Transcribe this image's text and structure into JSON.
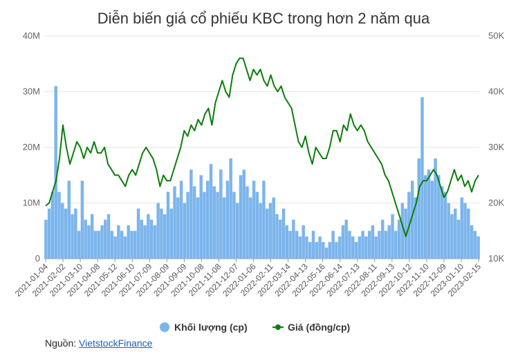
{
  "chart_data": {
    "type": "bar+line",
    "title": "Diễn biến giá cổ phiếu KBC trong hơn 2 năm qua",
    "x_labels": [
      "2021-01-04",
      "2021-02-02",
      "2021-03-10",
      "2021-04-08",
      "2021-05-12",
      "2021-06-10",
      "2021-07-09",
      "2021-08-09",
      "2021-09-09",
      "2021-10-08",
      "2021-11-08",
      "2021-12-07",
      "2022-01-06",
      "2022-02-11",
      "2022-03-14",
      "2022-04-13",
      "2022-05-16",
      "2022-06-14",
      "2022-07-13",
      "2022-08-11",
      "2022-09-13",
      "2022-10-12",
      "2022-11-10",
      "2022-12-09",
      "2023-01-10",
      "2023-02-15"
    ],
    "left_axis": {
      "ticks": [
        "0",
        "10M",
        "20M",
        "30M",
        "40M"
      ],
      "min": 0,
      "max": 40000000
    },
    "right_axis": {
      "ticks": [
        "10K",
        "20K",
        "30K",
        "40K",
        "50K"
      ],
      "min": 10000,
      "max": 50000
    },
    "series": [
      {
        "name": "Khối lượng (cp)",
        "type": "bar",
        "axis": "left",
        "color": "#7cb5ec",
        "values_millions": [
          7,
          9,
          12,
          31,
          12,
          10,
          9,
          14,
          8,
          9,
          5,
          14,
          7,
          6,
          8,
          5,
          5,
          6,
          7,
          8,
          5,
          4,
          6,
          5,
          4,
          6,
          5,
          5,
          9,
          7,
          6,
          8,
          7,
          6,
          10,
          9,
          8,
          12,
          9,
          13,
          11,
          14,
          10,
          12,
          16,
          13,
          11,
          15,
          12,
          14,
          17,
          13,
          12,
          16,
          11,
          14,
          18,
          12,
          10,
          15,
          16,
          13,
          11,
          14,
          12,
          10,
          14,
          9,
          10,
          11,
          8,
          7,
          9,
          6,
          5,
          7,
          5,
          4,
          6,
          4,
          3,
          5,
          3,
          4,
          3,
          2,
          3,
          5,
          3,
          4,
          6,
          7,
          5,
          4,
          3,
          4,
          5,
          4,
          5,
          6,
          4,
          5,
          7,
          5,
          6,
          8,
          5,
          7,
          10,
          9,
          12,
          14,
          11,
          18,
          29,
          15,
          16,
          14,
          18,
          15,
          13,
          12,
          10,
          8,
          9,
          7,
          11,
          10,
          9,
          6,
          5,
          4
        ]
      },
      {
        "name": "Giá (đồng/cp)",
        "type": "line",
        "axis": "right",
        "color": "#0a7d0a",
        "values_k": [
          19.5,
          20,
          22,
          24,
          28,
          34,
          30,
          27,
          29,
          31,
          30,
          28,
          30,
          29,
          31,
          29,
          29,
          30,
          27,
          26,
          25,
          25,
          24,
          23,
          25,
          26,
          25,
          27,
          29,
          30,
          29,
          28,
          26,
          23,
          25,
          24,
          24,
          26,
          28,
          30,
          33,
          32,
          34,
          33,
          35,
          34,
          36,
          37,
          34,
          38,
          40,
          42,
          40,
          39,
          43,
          45,
          46,
          46,
          44,
          42,
          44,
          43,
          44,
          42,
          41,
          43,
          41,
          40,
          41,
          39,
          38,
          37,
          34,
          31,
          30,
          32,
          29,
          27,
          30,
          29,
          28,
          28,
          30,
          33,
          33,
          31,
          34,
          33,
          36,
          34,
          33,
          34,
          33,
          31,
          30,
          29,
          28,
          27,
          25,
          24,
          22,
          20,
          18,
          16,
          14,
          16,
          18,
          20,
          23,
          24,
          24,
          25,
          26,
          25,
          23,
          21,
          22,
          24,
          26,
          24,
          25,
          23,
          24,
          22,
          24,
          25
        ]
      }
    ],
    "legend": [
      "Khối lượng (cp)",
      "Giá (đồng/cp)"
    ],
    "legend_position": "bottom-center"
  },
  "source": {
    "label": "Nguồn: ",
    "link": "VietstockFinance"
  }
}
